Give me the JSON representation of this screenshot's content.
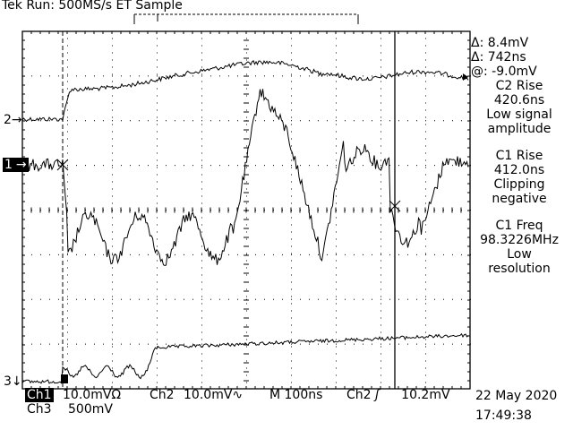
{
  "header": {
    "brand": "Tek",
    "status": "Run: 500MS/s ET Sample"
  },
  "channel_markers": {
    "ch2": "2",
    "ch1": "1",
    "ch3": "3"
  },
  "measurements": {
    "delta_v": "Δ: 8.4mV",
    "delta_t": "Δ: 742ns",
    "at_v": "@: -9.0mV",
    "m1": {
      "title": "C2 Rise",
      "value": "420.6ns",
      "note1": "Low signal",
      "note2": "amplitude"
    },
    "m2": {
      "title": "C1 Rise",
      "value": "412.0ns",
      "note1": "Clipping",
      "note2": "negative"
    },
    "m3": {
      "title": "C1 Freq",
      "value": "98.3226MHz",
      "note1": "Low",
      "note2": "resolution"
    }
  },
  "footer": {
    "ch1_label": "Ch1",
    "ch1_scale": "10.0mVΩ",
    "ch2_label": "Ch2",
    "ch2_scale": "10.0mV∿",
    "timebase": "M  100ns",
    "trigger_src": "Ch2",
    "trigger_level": "10.2mV",
    "ch3_label": "Ch3",
    "ch3_scale": "500mV",
    "date": "22 May 2020",
    "time": "17:49:38"
  },
  "colors": {
    "trace": "#000000",
    "background": "#ffffff",
    "grid": "#000000"
  }
}
